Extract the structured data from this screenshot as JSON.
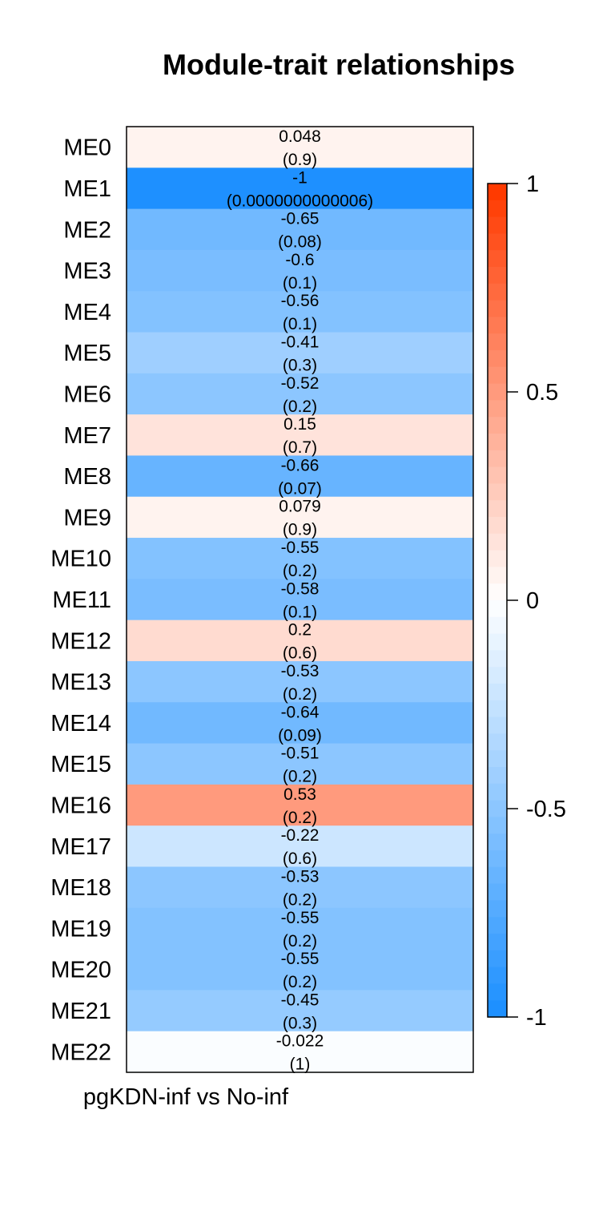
{
  "chart_data": {
    "type": "heatmap",
    "title": "Module-trait relationships",
    "xlabel": "",
    "ylabel": "",
    "columns": [
      "pgKDN-inf vs No-inf"
    ],
    "rows": [
      "ME0",
      "ME1",
      "ME2",
      "ME3",
      "ME4",
      "ME5",
      "ME6",
      "ME7",
      "ME8",
      "ME9",
      "ME10",
      "ME11",
      "ME12",
      "ME13",
      "ME14",
      "ME15",
      "ME16",
      "ME17",
      "ME18",
      "ME19",
      "ME20",
      "ME21",
      "ME22"
    ],
    "values": [
      0.048,
      -1,
      -0.65,
      -0.6,
      -0.56,
      -0.41,
      -0.52,
      0.15,
      -0.66,
      0.079,
      -0.55,
      -0.58,
      0.2,
      -0.53,
      -0.64,
      -0.51,
      0.53,
      -0.22,
      -0.53,
      -0.55,
      -0.55,
      -0.45,
      -0.022
    ],
    "value_labels": [
      "0.048",
      "-1",
      "-0.65",
      "-0.6",
      "-0.56",
      "-0.41",
      "-0.52",
      "0.15",
      "-0.66",
      "0.079",
      "-0.55",
      "-0.58",
      "0.2",
      "-0.53",
      "-0.64",
      "-0.51",
      "0.53",
      "-0.22",
      "-0.53",
      "-0.55",
      "-0.55",
      "-0.45",
      "-0.022"
    ],
    "pvalue_labels": [
      "(0.9)",
      "(0.0000000000006)",
      "(0.08)",
      "(0.1)",
      "(0.1)",
      "(0.3)",
      "(0.2)",
      "(0.7)",
      "(0.07)",
      "(0.9)",
      "(0.2)",
      "(0.1)",
      "(0.6)",
      "(0.2)",
      "(0.09)",
      "(0.2)",
      "(0.2)",
      "(0.6)",
      "(0.2)",
      "(0.2)",
      "(0.2)",
      "(0.3)",
      "(1)"
    ],
    "colorbar": {
      "range": [
        -1,
        1
      ],
      "ticks": [
        1,
        0.5,
        0,
        -0.5,
        -1
      ],
      "tick_labels": [
        "1",
        "0.5",
        "0",
        "-0.5",
        "-1"
      ],
      "low_color": "#1E90FF",
      "mid_color": "#FFFFFF",
      "high_color": "#FF3A00"
    },
    "legend": "right",
    "grid": false
  }
}
